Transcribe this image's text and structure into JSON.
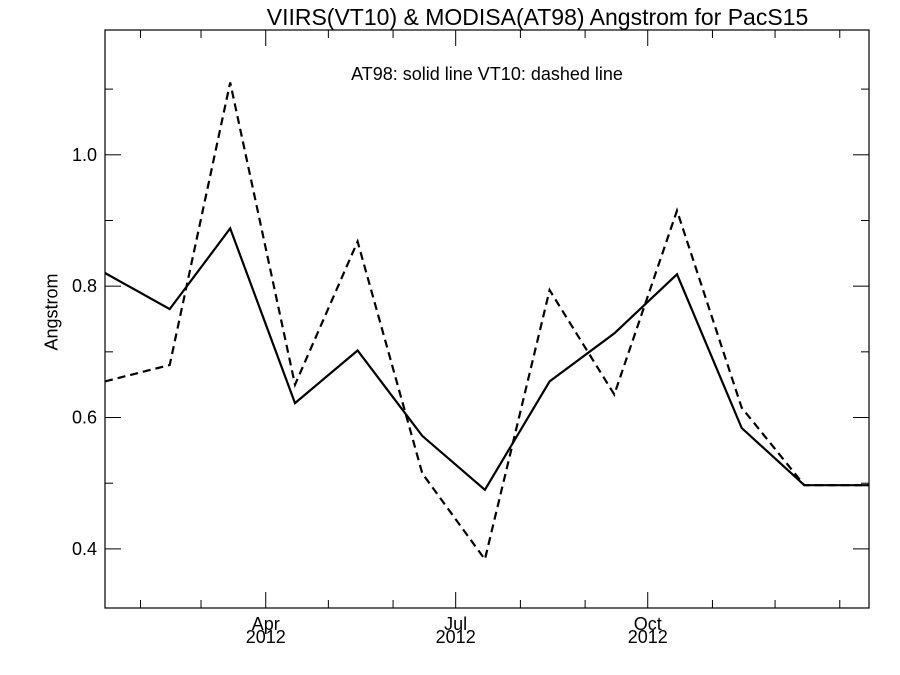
{
  "chart_data": {
    "type": "line",
    "title": "VIIRS(VT10) & MODISA(AT98)  Angstrom for PacS15",
    "ylabel": "Angstrom",
    "xlabel": "",
    "annotation": "AT98: solid line   VT10: dashed line",
    "ylim": [
      0.31,
      1.19
    ],
    "xlim": [
      "2012-01-15",
      "2013-01-15"
    ],
    "yticks": [
      "0.4",
      "0.6",
      "0.8",
      "1.0"
    ],
    "xticks": [
      {
        "month": "Apr",
        "year": "2012"
      },
      {
        "month": "Jul",
        "year": "2012"
      },
      {
        "month": "Oct",
        "year": "2012"
      }
    ],
    "x": [
      "2012-01-15",
      "2012-02-15",
      "2012-03-15",
      "2012-04-15",
      "2012-05-15",
      "2012-06-15",
      "2012-07-15",
      "2012-08-15",
      "2012-09-15",
      "2012-10-15",
      "2012-11-15",
      "2012-12-15",
      "2013-01-15"
    ],
    "series": [
      {
        "name": "AT98",
        "style": "solid",
        "values": [
          0.82,
          0.765,
          0.888,
          0.622,
          0.702,
          0.572,
          0.49,
          0.655,
          0.728,
          0.818,
          0.584,
          0.497,
          0.497
        ]
      },
      {
        "name": "VT10",
        "style": "dashed",
        "values": [
          0.655,
          0.68,
          1.11,
          0.65,
          0.868,
          0.515,
          0.384,
          0.794,
          0.635,
          0.915,
          0.615,
          0.497,
          0.497
        ]
      }
    ],
    "grid": false,
    "legend": "none"
  }
}
